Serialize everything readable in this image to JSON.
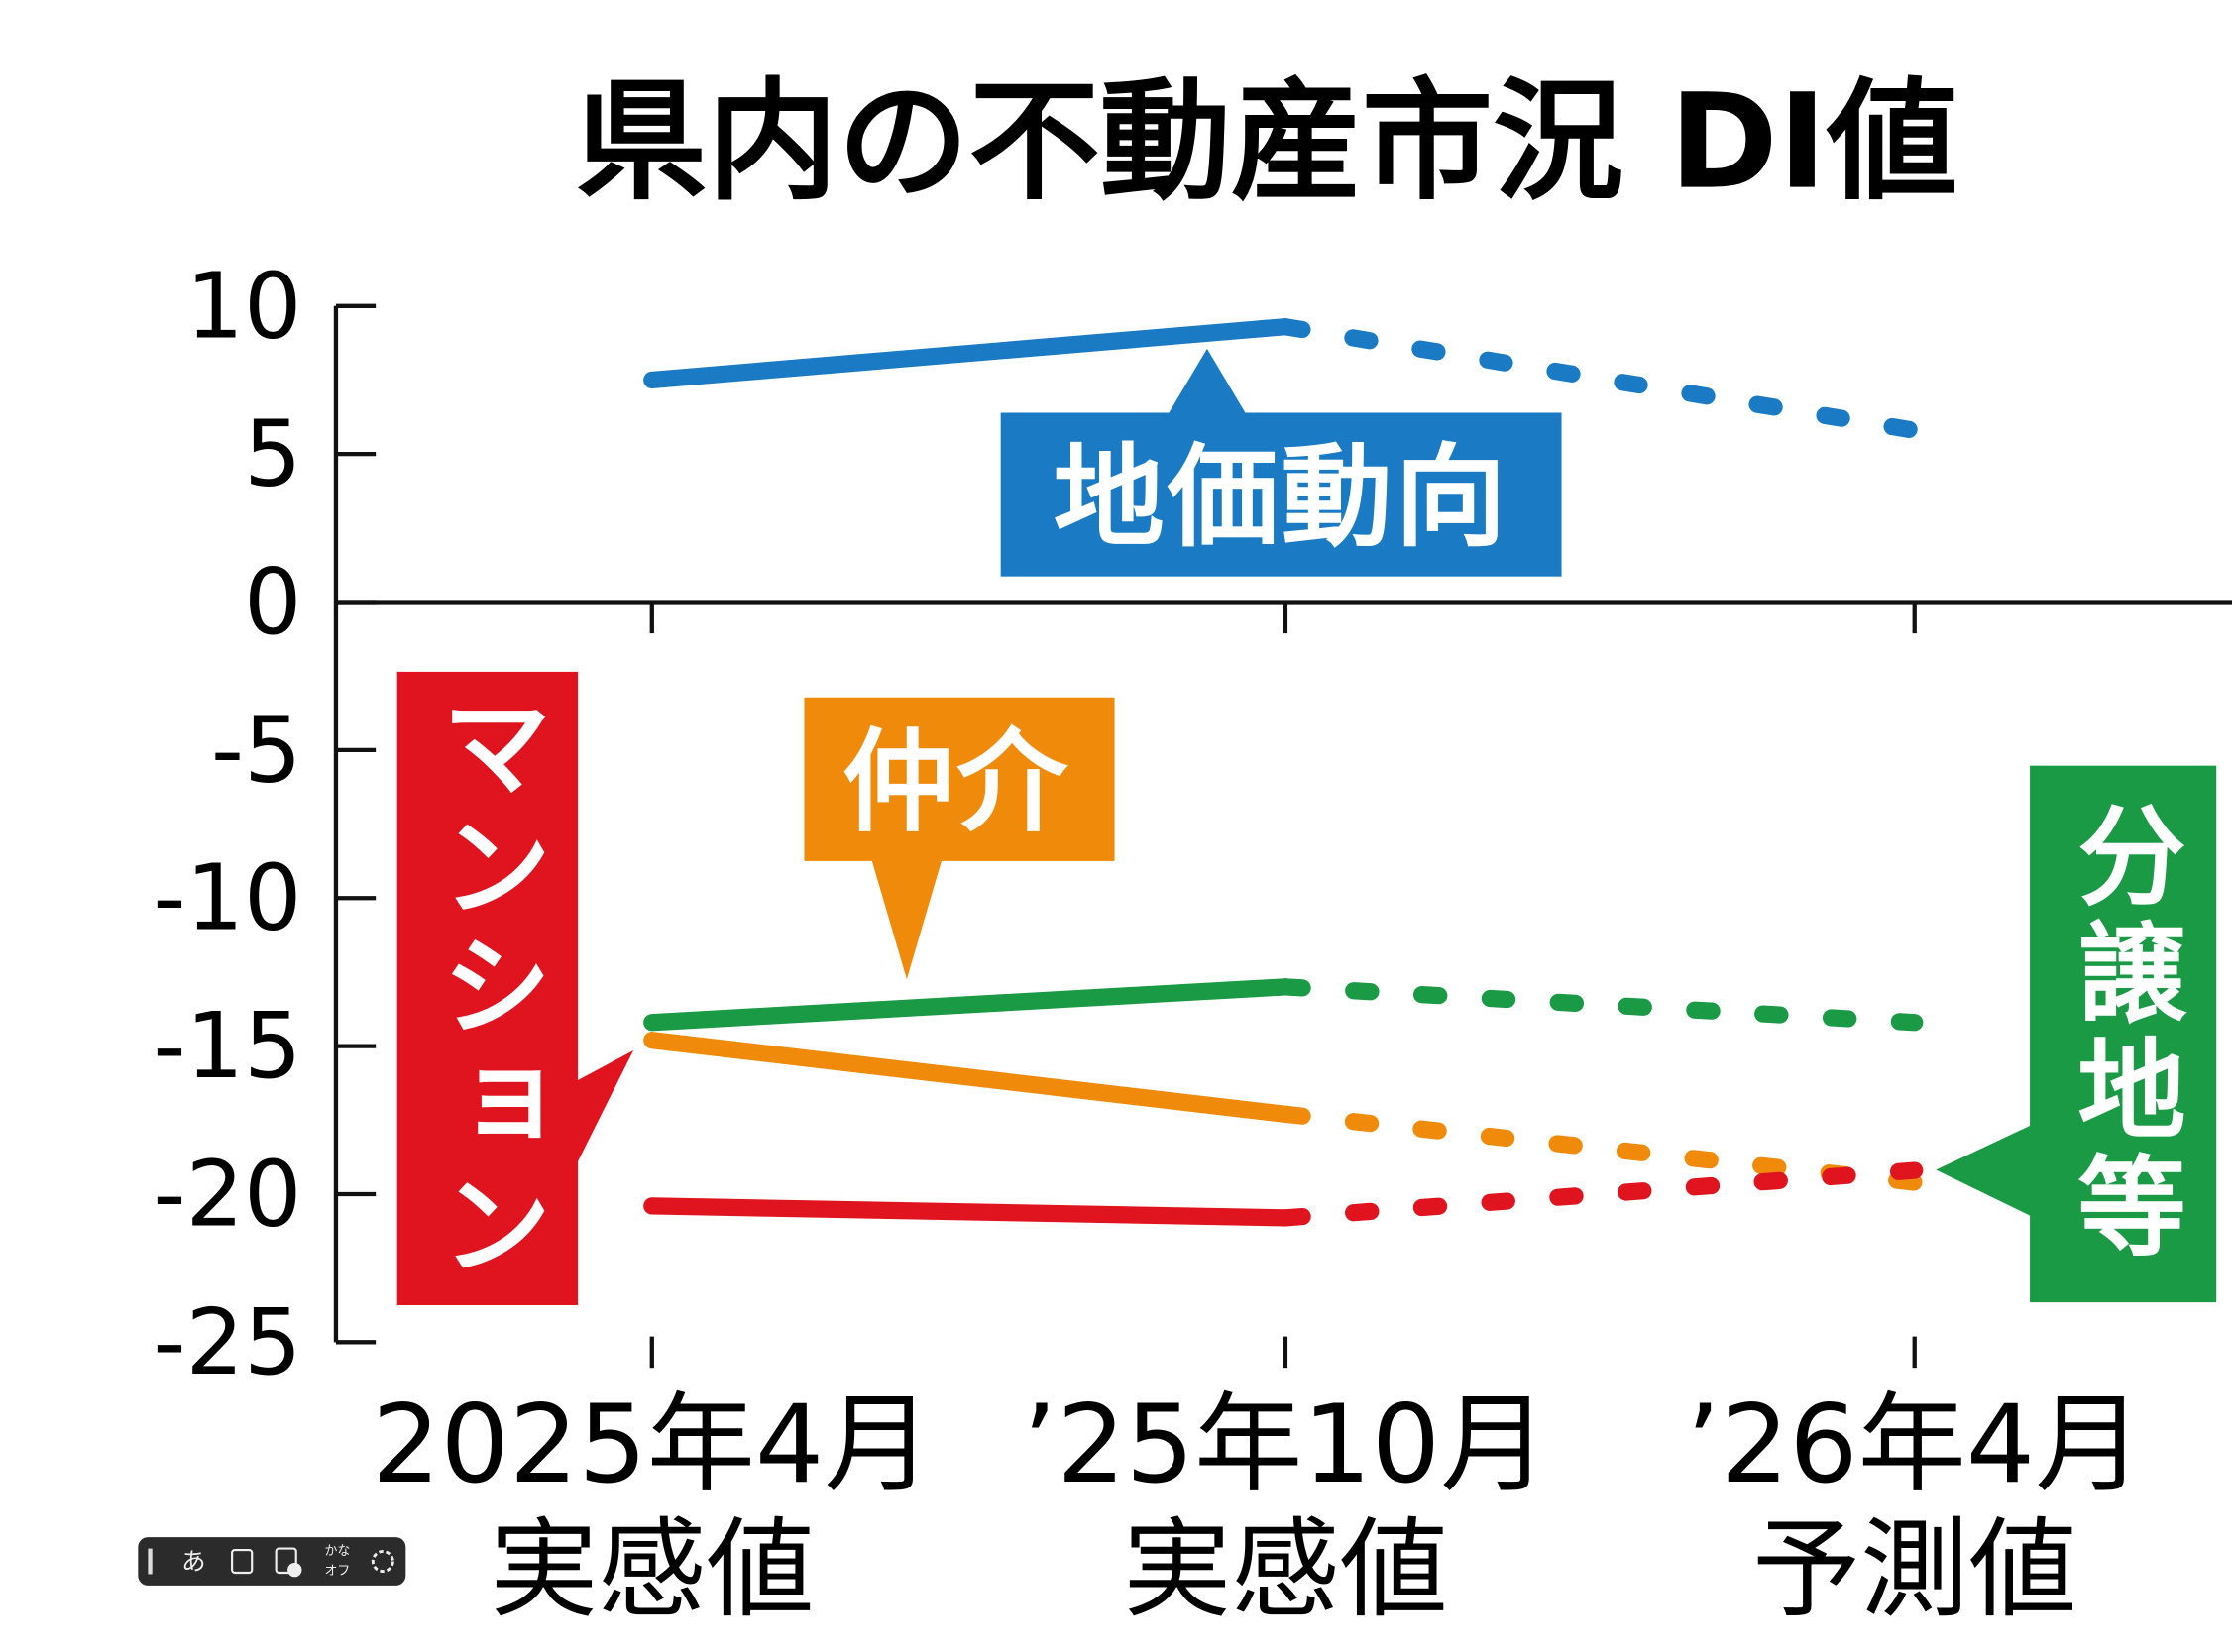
{
  "chart_data": {
    "type": "line",
    "title": "県内の不動産市況 DI値",
    "categories": [
      "2025年4月",
      "’25年10月",
      "’26年4月"
    ],
    "category_sublabels": [
      "実感値",
      "実感値",
      "予測値"
    ],
    "ylim": [
      -25,
      10
    ],
    "yticks": [
      10,
      5,
      0,
      -5,
      -10,
      -15,
      -20,
      -25
    ],
    "series": [
      {
        "name": "地価動向",
        "color": "#1a7bc4",
        "values": [
          7.5,
          9.3,
          5.8
        ]
      },
      {
        "name": "分譲地等",
        "color": "#1a9a45",
        "values": [
          -14.2,
          -13.0,
          -14.2
        ]
      },
      {
        "name": "仲介",
        "color": "#ef8a0a",
        "values": [
          -14.8,
          -17.3,
          -19.6
        ]
      },
      {
        "name": "マンション",
        "color": "#e0141e",
        "values": [
          -20.4,
          -20.8,
          -19.2
        ]
      }
    ]
  },
  "ime_toolbar": {
    "mode": "あ",
    "kana": "かな",
    "off": "オフ"
  }
}
